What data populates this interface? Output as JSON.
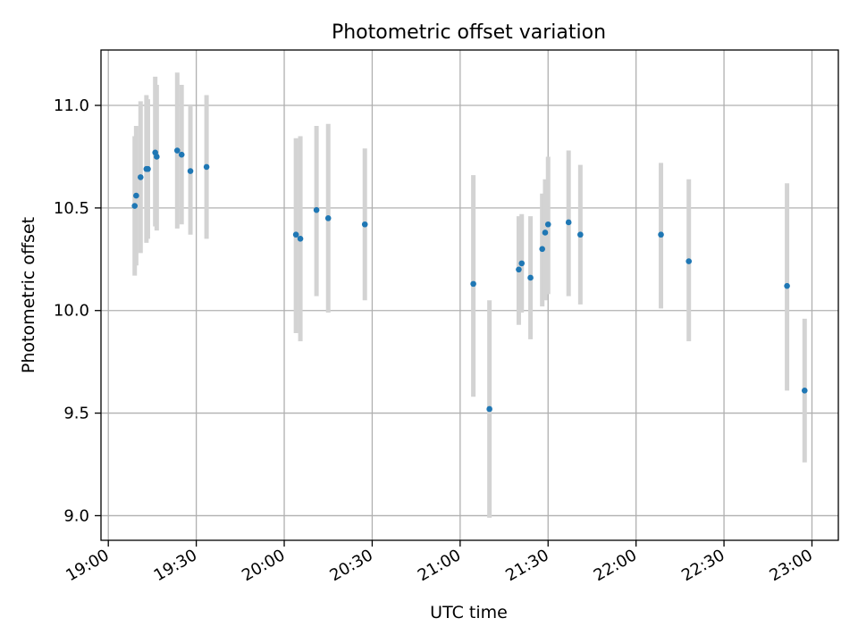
{
  "chart_data": {
    "type": "scatter",
    "title": "Photometric offset variation",
    "xlabel": "UTC time",
    "ylabel": "Photometric offset",
    "x_ticks": [
      "19:00",
      "19:30",
      "20:00",
      "20:30",
      "21:00",
      "21:30",
      "22:00",
      "22:30",
      "23:00"
    ],
    "y_ticks": [
      "9.0",
      "9.5",
      "10.0",
      "10.5",
      "11.0"
    ],
    "xlim": [
      "18:57.5",
      "23:09"
    ],
    "ylim": [
      8.88,
      11.27
    ],
    "grid": true,
    "legend": "none",
    "colors": {
      "points": "#1f77b4",
      "errorbars": "#d3d3d3",
      "grid": "#b0b0b0"
    },
    "points": [
      {
        "t": "19:09",
        "y": 10.51,
        "lo": 10.17,
        "hi": 10.85
      },
      {
        "t": "19:09.5",
        "y": 10.56,
        "lo": 10.22,
        "hi": 10.9
      },
      {
        "t": "19:11",
        "y": 10.65,
        "lo": 10.28,
        "hi": 11.02
      },
      {
        "t": "19:13",
        "y": 10.69,
        "lo": 10.33,
        "hi": 11.05
      },
      {
        "t": "19:13.5",
        "y": 10.69,
        "lo": 10.35,
        "hi": 11.03
      },
      {
        "t": "19:16",
        "y": 10.77,
        "lo": 10.41,
        "hi": 11.14
      },
      {
        "t": "19:16.5",
        "y": 10.75,
        "lo": 10.39,
        "hi": 11.1
      },
      {
        "t": "19:23.5",
        "y": 10.78,
        "lo": 10.4,
        "hi": 11.16
      },
      {
        "t": "19:25",
        "y": 10.76,
        "lo": 10.42,
        "hi": 11.1
      },
      {
        "t": "19:28",
        "y": 10.68,
        "lo": 10.37,
        "hi": 11.0
      },
      {
        "t": "19:33.5",
        "y": 10.7,
        "lo": 10.35,
        "hi": 11.05
      },
      {
        "t": "20:04",
        "y": 10.37,
        "lo": 9.89,
        "hi": 10.84
      },
      {
        "t": "20:05.5",
        "y": 10.35,
        "lo": 9.85,
        "hi": 10.85
      },
      {
        "t": "20:11",
        "y": 10.49,
        "lo": 10.07,
        "hi": 10.9
      },
      {
        "t": "20:15",
        "y": 10.45,
        "lo": 9.99,
        "hi": 10.91
      },
      {
        "t": "20:27.5",
        "y": 10.42,
        "lo": 10.05,
        "hi": 10.79
      },
      {
        "t": "21:04.5",
        "y": 10.13,
        "lo": 9.58,
        "hi": 10.66
      },
      {
        "t": "21:10",
        "y": 9.52,
        "lo": 8.99,
        "hi": 10.05
      },
      {
        "t": "21:20",
        "y": 10.2,
        "lo": 9.93,
        "hi": 10.46
      },
      {
        "t": "21:21",
        "y": 10.23,
        "lo": 9.99,
        "hi": 10.47
      },
      {
        "t": "21:24",
        "y": 10.16,
        "lo": 9.86,
        "hi": 10.46
      },
      {
        "t": "21:28",
        "y": 10.3,
        "lo": 10.02,
        "hi": 10.57
      },
      {
        "t": "21:29",
        "y": 10.38,
        "lo": 10.05,
        "hi": 10.64
      },
      {
        "t": "21:30",
        "y": 10.42,
        "lo": 10.08,
        "hi": 10.75
      },
      {
        "t": "21:37",
        "y": 10.43,
        "lo": 10.07,
        "hi": 10.78
      },
      {
        "t": "21:41",
        "y": 10.37,
        "lo": 10.03,
        "hi": 10.71
      },
      {
        "t": "22:08.5",
        "y": 10.37,
        "lo": 10.01,
        "hi": 10.72
      },
      {
        "t": "22:18",
        "y": 10.24,
        "lo": 9.85,
        "hi": 10.64
      },
      {
        "t": "22:51.5",
        "y": 10.12,
        "lo": 9.61,
        "hi": 10.62
      },
      {
        "t": "22:57.5",
        "y": 9.61,
        "lo": 9.26,
        "hi": 9.96
      }
    ]
  }
}
